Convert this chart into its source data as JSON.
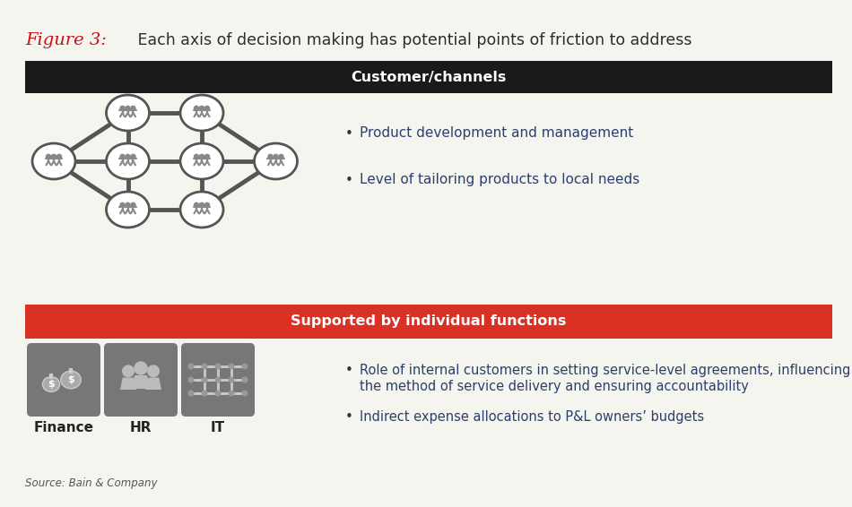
{
  "title_italic_red": "Figure 3:",
  "title_black": " Each axis of decision making has potential points of friction to address",
  "section1_label": "Customer/channels",
  "section1_bg": "#1a1a1a",
  "section1_text_color": "#ffffff",
  "section1_bullets": [
    "Product development and management",
    "Level of tailoring products to local needs"
  ],
  "section2_label": "Supported by individual functions",
  "section2_bg": "#d93225",
  "section2_text_color": "#ffffff",
  "icons": [
    "Finance",
    "HR",
    "IT"
  ],
  "source": "Source: Bain & Company",
  "bg_color": "#f5f5f0",
  "bullet_color": "#2c3e6b",
  "node_edge_color": "#555555",
  "node_face_color": "#ffffff",
  "people_color": "#888888",
  "icon_bg": "#777777"
}
